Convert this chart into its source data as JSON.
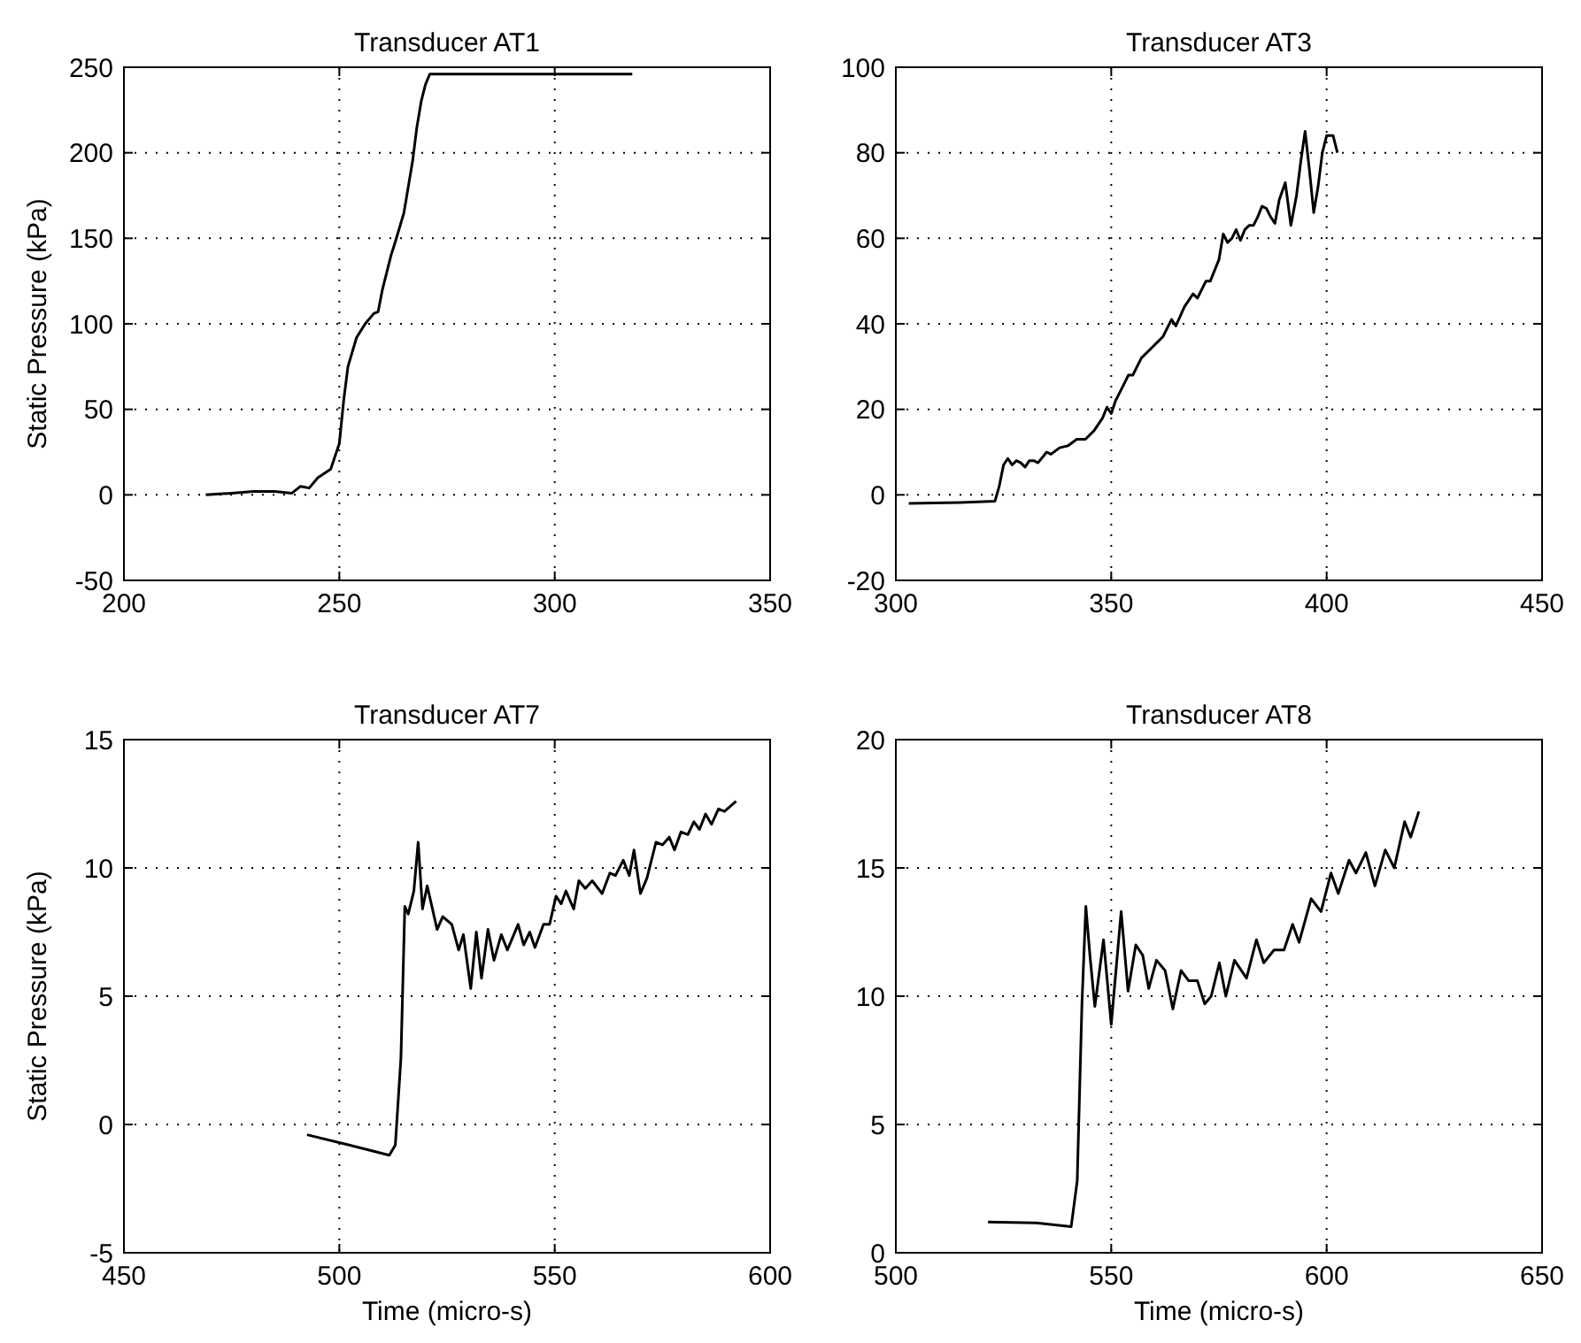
{
  "chart_data": [
    {
      "type": "line",
      "title": "Transducer AT1",
      "ylabel": "Static Pressure (kPa)",
      "xlim": [
        200,
        350
      ],
      "ylim": [
        -50,
        250
      ],
      "xticks": [
        200,
        250,
        300,
        350
      ],
      "yticks": [
        -50,
        0,
        50,
        100,
        150,
        200,
        250
      ],
      "grid": true,
      "x": [
        219,
        225,
        230,
        235,
        239,
        241,
        243,
        245,
        248,
        250,
        251,
        252,
        254,
        256,
        258,
        259,
        260,
        262,
        263,
        265,
        267,
        268,
        269,
        270,
        271,
        300,
        318
      ],
      "series": [
        {
          "color": "#000000",
          "values": [
            0,
            1,
            2,
            2,
            1,
            5,
            4,
            10,
            15,
            30,
            55,
            75,
            92,
            100,
            106,
            107,
            120,
            140,
            148,
            165,
            195,
            215,
            230,
            240,
            246,
            246,
            246
          ]
        }
      ]
    },
    {
      "type": "line",
      "title": "Transducer AT3",
      "xlim": [
        300,
        450
      ],
      "ylim": [
        -20,
        100
      ],
      "xticks": [
        300,
        350,
        400,
        450
      ],
      "yticks": [
        -20,
        0,
        20,
        40,
        60,
        80,
        100
      ],
      "grid": true,
      "x": [
        303,
        315,
        323,
        324,
        325,
        326,
        327,
        328,
        329,
        330,
        331,
        332,
        333,
        335,
        336,
        338,
        340,
        342,
        344,
        346,
        348,
        349,
        350,
        351,
        352,
        354,
        355,
        357,
        359,
        361,
        362,
        364,
        365,
        367,
        369,
        370,
        372,
        373,
        375,
        376,
        377,
        378,
        379,
        380,
        381,
        382,
        383,
        384,
        385,
        386,
        387,
        388,
        389,
        390.4,
        391.7,
        393,
        394,
        395,
        396,
        397,
        398,
        399,
        400,
        401.5,
        402.5
      ],
      "series": [
        {
          "color": "#000000",
          "values": [
            -2,
            -1.8,
            -1.5,
            2,
            7,
            8.5,
            7,
            8,
            7.5,
            6.5,
            8,
            8,
            7.5,
            10,
            9.5,
            11,
            11.5,
            13,
            13,
            15,
            18,
            20.5,
            19,
            22,
            24,
            28,
            28,
            32,
            34,
            36,
            37,
            41,
            39.5,
            44,
            47,
            46,
            50,
            50,
            55,
            61,
            59,
            60,
            62,
            59.5,
            62,
            63,
            63,
            65,
            67.5,
            67,
            65,
            63.5,
            69,
            73,
            63,
            70,
            78,
            85,
            76,
            66,
            72,
            80,
            84,
            84,
            80
          ]
        }
      ]
    },
    {
      "type": "line",
      "title": "Transducer AT7",
      "ylabel": "Static Pressure (kPa)",
      "xlabel": "Time (micro-s)",
      "xlim": [
        450,
        600
      ],
      "ylim": [
        -5,
        15
      ],
      "xticks": [
        450,
        500,
        550,
        600
      ],
      "yticks": [
        -5,
        0,
        5,
        10,
        15
      ],
      "grid": true,
      "x": [
        492.5,
        502.3,
        511.6,
        513,
        514.3,
        515.2,
        516,
        517.3,
        518.3,
        519.3,
        520.4,
        522.7,
        524,
        526.1,
        527.7,
        528.8,
        530.5,
        531.8,
        533,
        534.5,
        535.9,
        537.6,
        539,
        541.5,
        542.8,
        544.2,
        545.4,
        547.4,
        548.8,
        550.3,
        551.5,
        552.6,
        554.4,
        555.6,
        557.1,
        558.7,
        561,
        562.8,
        564.1,
        565.9,
        567.3,
        568.4,
        569.9,
        571.4,
        573.5,
        575,
        576.6,
        577.8,
        579.3,
        580.9,
        582.3,
        583.6,
        585,
        586.4,
        588,
        589.4,
        592.1
      ],
      "series": [
        {
          "color": "#000000",
          "values": [
            -0.4,
            -0.8,
            -1.2,
            -0.8,
            2.6,
            8.5,
            8.2,
            9.1,
            11,
            8.4,
            9.3,
            7.6,
            8.1,
            7.8,
            6.8,
            7.4,
            5.3,
            7.5,
            5.7,
            7.6,
            6.4,
            7.4,
            6.8,
            7.8,
            7,
            7.5,
            6.9,
            7.8,
            7.8,
            8.9,
            8.6,
            9.1,
            8.4,
            9.5,
            9.2,
            9.5,
            9,
            9.8,
            9.7,
            10.3,
            9.7,
            10.7,
            9,
            9.6,
            11,
            10.9,
            11.2,
            10.7,
            11.4,
            11.3,
            11.8,
            11.5,
            12.1,
            11.7,
            12.3,
            12.2,
            12.6
          ]
        }
      ]
    },
    {
      "type": "line",
      "title": "Transducer AT8",
      "xlabel": "Time (micro-s)",
      "xlim": [
        500,
        650
      ],
      "ylim": [
        0,
        20
      ],
      "xticks": [
        500,
        550,
        600,
        650
      ],
      "yticks": [
        0,
        5,
        10,
        15,
        20
      ],
      "grid": true,
      "x": [
        521.4,
        532.6,
        540.7,
        542.1,
        543.2,
        544.1,
        545.1,
        546.2,
        548.2,
        550,
        552.3,
        553.9,
        555.7,
        557.3,
        558.7,
        560.5,
        562.5,
        564.3,
        566.2,
        568,
        570,
        571.7,
        573.2,
        575.1,
        576.6,
        578.6,
        581.4,
        583.7,
        585.4,
        587.8,
        590.1,
        592.1,
        593.6,
        596.4,
        598.7,
        601,
        602.7,
        605.2,
        606.8,
        609.1,
        611.2,
        613.6,
        615.7,
        618.1,
        619.5,
        621.4
      ],
      "series": [
        {
          "color": "#000000",
          "values": [
            1.2,
            1.16,
            1.02,
            2.8,
            9.7,
            13.5,
            11.5,
            9.6,
            12.2,
            8.9,
            13.3,
            10.2,
            12,
            11.6,
            10.3,
            11.4,
            11,
            9.5,
            11,
            10.6,
            10.6,
            9.7,
            10,
            11.3,
            10,
            11.4,
            10.7,
            12.2,
            11.3,
            11.8,
            11.8,
            12.8,
            12.1,
            13.8,
            13.3,
            14.8,
            14,
            15.3,
            14.8,
            15.6,
            14.3,
            15.7,
            15,
            16.8,
            16.2,
            17.2
          ]
        }
      ]
    }
  ]
}
